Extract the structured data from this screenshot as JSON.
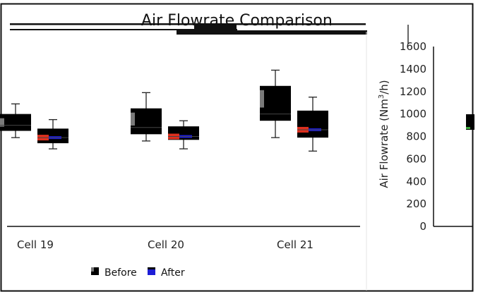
{
  "chart_data": {
    "type": "box",
    "title": "Air Flowrate Comparison",
    "ylabel": "Air Flowrate (Nm³/h)",
    "ylabel_parts": {
      "main": "Air Flowrate (Nm",
      "sup": "3",
      "tail": "/h)"
    },
    "ylim": [
      0,
      1600
    ],
    "yticks": [
      1600,
      1400,
      1200,
      1000,
      800,
      600,
      400,
      200,
      0
    ],
    "highlight_tick": 1000,
    "categories": [
      "Cell 19",
      "Cell 20",
      "Cell 21"
    ],
    "legend": {
      "position": "bottom-center",
      "entries": [
        "Before",
        "After"
      ]
    },
    "series": [
      {
        "name": "Before",
        "color": "#000000",
        "boxes": [
          {
            "min": 790,
            "q1": 850,
            "median": 900,
            "q3": 1000,
            "max": 1090
          },
          {
            "min": 760,
            "q1": 820,
            "median": 880,
            "q3": 1050,
            "max": 1190
          },
          {
            "min": 790,
            "q1": 940,
            "median": 1000,
            "q3": 1250,
            "max": 1390
          }
        ]
      },
      {
        "name": "After",
        "color": "#1d1dd6",
        "boxes": [
          {
            "min": 690,
            "q1": 740,
            "median": 790,
            "q3": 870,
            "max": 950
          },
          {
            "min": 690,
            "q1": 770,
            "median": 800,
            "q3": 890,
            "max": 940
          },
          {
            "min": 670,
            "q1": 790,
            "median": 860,
            "q3": 1030,
            "max": 1150
          }
        ]
      }
    ]
  }
}
